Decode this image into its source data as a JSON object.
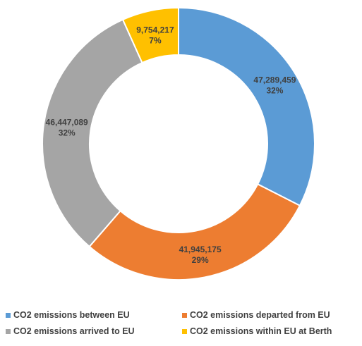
{
  "chart_data": {
    "type": "pie",
    "donut": true,
    "title": "",
    "legend_position": "bottom",
    "slices": [
      {
        "name": "CO2 emissions between EU",
        "value": 47289459,
        "value_label": "47,289,459",
        "percent_label": "32%",
        "color": "#5B9BD5"
      },
      {
        "name": "CO2 emissions departed from EU",
        "value": 41945175,
        "value_label": "41,945,175",
        "percent_label": "29%",
        "color": "#ED7D31"
      },
      {
        "name": "CO2 emissions arrived to EU",
        "value": 46447089,
        "value_label": "46,447,089",
        "percent_label": "32%",
        "color": "#A5A5A5"
      },
      {
        "name": "CO2 emissions within EU at Berth",
        "value": 9754217,
        "value_label": "9,754,217",
        "percent_label": "7%",
        "color": "#FFC000"
      }
    ]
  },
  "legend": {
    "items": [
      {
        "label": "CO2 emissions between EU",
        "color": "#5B9BD5"
      },
      {
        "label": "CO2 emissions departed from EU",
        "color": "#ED7D31"
      },
      {
        "label": "CO2 emissions arrived to EU",
        "color": "#A5A5A5"
      },
      {
        "label": "CO2 emissions within EU at Berth",
        "color": "#FFC000"
      }
    ]
  }
}
